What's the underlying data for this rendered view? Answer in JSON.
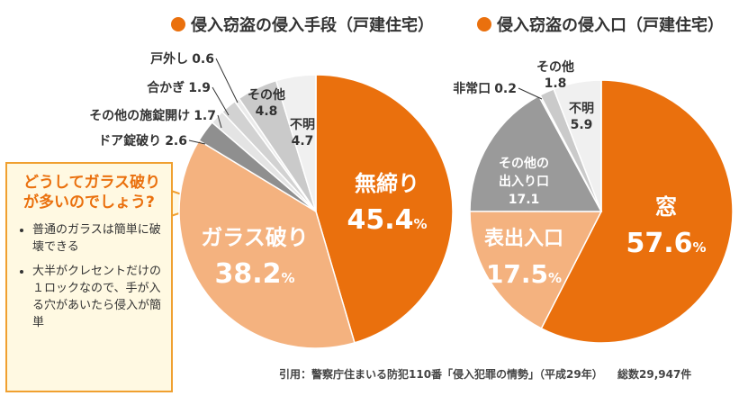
{
  "chart_data": [
    {
      "type": "pie",
      "title": "侵入窃盗の侵入手段（戸建住宅）",
      "unit": "%",
      "categories": [
        "無締り",
        "ガラス破り",
        "ドア錠破り",
        "その他の施錠開け",
        "合かぎ",
        "戸外し",
        "その他",
        "不明"
      ],
      "values": [
        45.4,
        38.2,
        2.6,
        1.7,
        1.9,
        0.6,
        4.8,
        4.7
      ],
      "colors": [
        "#ea700d",
        "#f4b27f",
        "#8f8f8f",
        "#e4e4e4",
        "#d2d2d2",
        "#ebebeb",
        "#cacaca",
        "#f0f0f0"
      ]
    },
    {
      "type": "pie",
      "title": "侵入窃盗の侵入口（戸建住宅）",
      "unit": "%",
      "categories": [
        "窓",
        "表出入口",
        "その他の\n出入り口",
        "非常口",
        "その他",
        "不明"
      ],
      "values": [
        57.6,
        17.5,
        17.1,
        0.2,
        1.8,
        5.9
      ],
      "colors": [
        "#ea700d",
        "#f4b27f",
        "#9a9a9a",
        "#d0d0d0",
        "#cacaca",
        "#f0f0f0"
      ]
    }
  ],
  "callout": {
    "title": "どうしてガラス破りが多いのでしょう?",
    "items": [
      "普通のガラスは簡単に破壊できる",
      "大半がクレセントだけの１ロックなので、手が入る穴があいたら侵入が簡単"
    ]
  },
  "source": "引用：警察庁住まいる防犯110番「侵入犯罪の情勢」（平成29年）",
  "total": "総数29,947件"
}
